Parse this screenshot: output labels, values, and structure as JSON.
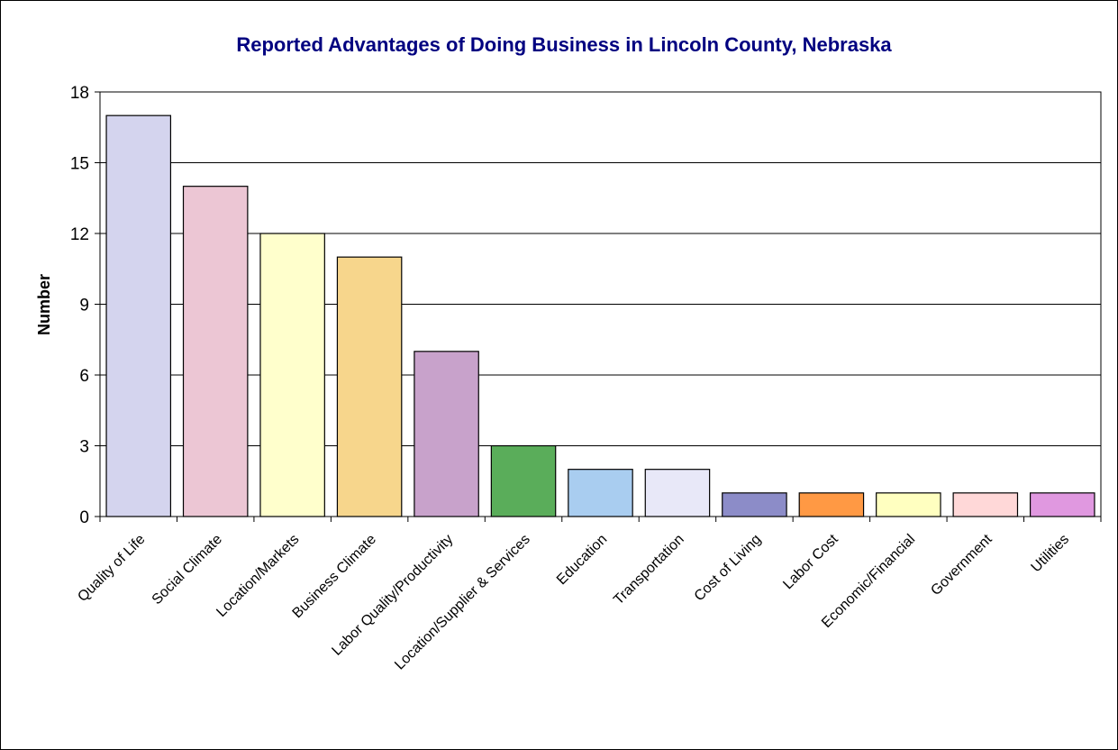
{
  "chart_data": {
    "type": "bar",
    "title": "Reported Advantages of Doing Business in Lincoln County, Nebraska",
    "xlabel": "",
    "ylabel": "Number",
    "ylim": [
      0,
      18
    ],
    "yticks": [
      0,
      3,
      6,
      9,
      12,
      15,
      18
    ],
    "grid": true,
    "categories": [
      "Quality of Life",
      "Social Climate",
      "Location/Markets",
      "Business Climate",
      "Labor Quality/Productivity",
      "Location/Supplier & Services",
      "Education",
      "Transportation",
      "Cost of Living",
      "Labor Cost",
      "Economic/Financial",
      "Government",
      "Utilities"
    ],
    "values": [
      17,
      14,
      12,
      11,
      7,
      3,
      2,
      2,
      1,
      1,
      1,
      1,
      1
    ],
    "colors": [
      "#d4d4ee",
      "#ecc6d4",
      "#ffffcc",
      "#f7d68c",
      "#c8a2cb",
      "#5aad5a",
      "#a9cdf0",
      "#e8e8f8",
      "#8c8cc8",
      "#ff9944",
      "#ffffc0",
      "#ffd8d8",
      "#e098e0"
    ],
    "title_color": "#000080"
  }
}
